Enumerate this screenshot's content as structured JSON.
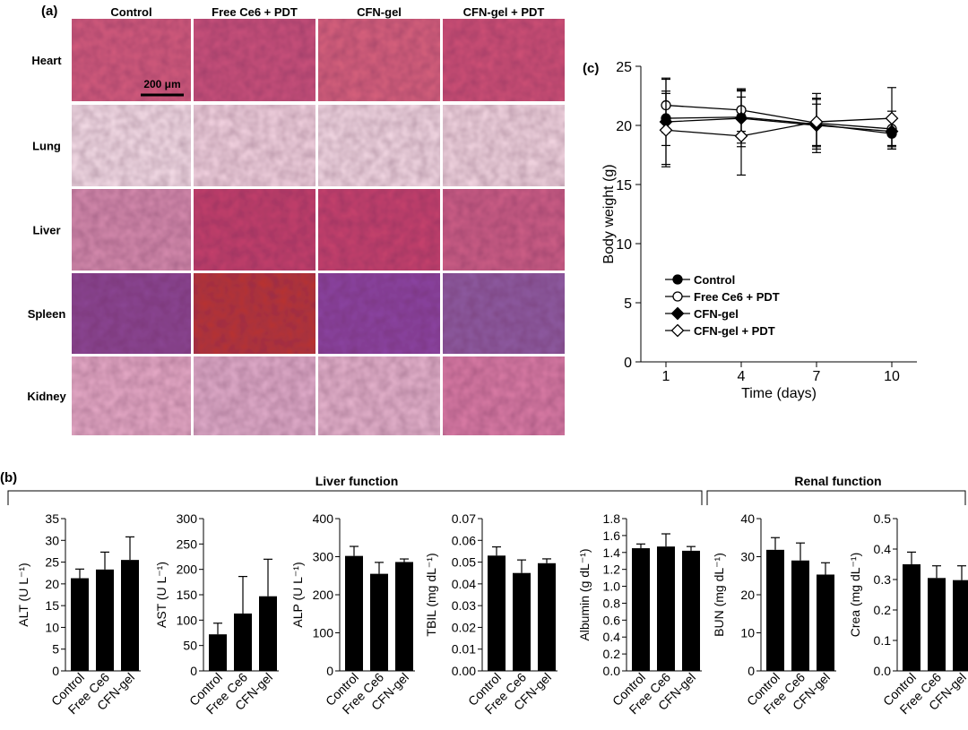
{
  "panel_labels": {
    "a": "(a)",
    "b": "(b)",
    "c": "(c)"
  },
  "histology": {
    "columns": [
      "Control",
      "Free Ce6 + PDT",
      "CFN-gel",
      "CFN-gel + PDT"
    ],
    "rows": [
      "Heart",
      "Lung",
      "Liver",
      "Spleen",
      "Kidney"
    ],
    "scale_bar": "200 μm",
    "tissue_colors": {
      "Heart": [
        "#d25a7c",
        "#c8507a",
        "#d6607c",
        "#cd4f75"
      ],
      "Lung": [
        "#f3dbe6",
        "#f0d0de",
        "#f1d6e2",
        "#f0d3df"
      ],
      "Liver": [
        "#d389ac",
        "#c23f6a",
        "#c5416c",
        "#cb5d85"
      ],
      "Spleen": [
        "#8a4592",
        "#b8332f",
        "#8a43a0",
        "#8d5aa0"
      ],
      "Kidney": [
        "#e4a8c5",
        "#deaac8",
        "#e3b1cb",
        "#d87aa4"
      ]
    }
  },
  "groups": {
    "liver_function": "Liver function",
    "renal_function": "Renal function"
  },
  "chart_data": [
    {
      "panel": "c",
      "type": "line",
      "xlabel": "Time (days)",
      "ylabel": "Body weight (g)",
      "x": [
        1,
        4,
        7,
        10
      ],
      "xticks": [
        "1",
        "4",
        "7",
        "10"
      ],
      "ylim": [
        0,
        25
      ],
      "yticks": [
        "0",
        "5",
        "10",
        "15",
        "20",
        "25"
      ],
      "legend_position": "bottom-left",
      "series": [
        {
          "name": "Control",
          "marker": "filled-circle",
          "values": [
            20.6,
            20.7,
            20.1,
            19.3
          ],
          "errors": [
            2.3,
            2.2,
            2.1,
            1.3
          ]
        },
        {
          "name": "Free Ce6 + PDT",
          "marker": "open-circle",
          "values": [
            21.7,
            21.3,
            20.2,
            19.7
          ],
          "errors": [
            2.3,
            1.8,
            2.5,
            1.5
          ]
        },
        {
          "name": "CFN-gel",
          "marker": "filled-diamond",
          "values": [
            20.3,
            20.6,
            20.0,
            19.5
          ],
          "errors": [
            3.6,
            2.4,
            1.8,
            1.2
          ]
        },
        {
          "name": "CFN-gel + PDT",
          "marker": "open-diamond",
          "values": [
            19.6,
            19.1,
            20.3,
            20.6
          ],
          "errors": [
            3.1,
            3.3,
            2.0,
            2.6
          ]
        }
      ]
    },
    {
      "panel": "b",
      "type": "bar",
      "ylabel": "ALT (U L⁻¹)",
      "categories": [
        "Control",
        "Free Ce6",
        "CFN-gel"
      ],
      "values": [
        21.3,
        23.3,
        25.5
      ],
      "errors": [
        2.1,
        4.0,
        5.3
      ],
      "ylim": [
        0,
        35
      ],
      "yticks": [
        "0",
        "5",
        "10",
        "15",
        "20",
        "25",
        "30",
        "35"
      ]
    },
    {
      "panel": "b",
      "type": "bar",
      "ylabel": "AST (U L⁻¹)",
      "categories": [
        "Control",
        "Free Ce6",
        "CFN-gel"
      ],
      "values": [
        72,
        113,
        147
      ],
      "errors": [
        22,
        73,
        73
      ],
      "ylim": [
        0,
        300
      ],
      "yticks": [
        "0",
        "50",
        "100",
        "150",
        "200",
        "250",
        "300"
      ]
    },
    {
      "panel": "b",
      "type": "bar",
      "ylabel": "ALP (U L⁻¹)",
      "categories": [
        "Control",
        "Free Ce6",
        "CFN-gel"
      ],
      "values": [
        302,
        255,
        286
      ],
      "errors": [
        25,
        30,
        8
      ],
      "ylim": [
        0,
        400
      ],
      "yticks": [
        "0",
        "100",
        "200",
        "300",
        "400"
      ]
    },
    {
      "panel": "b",
      "type": "bar",
      "ylabel": "TBIL (mg dL⁻¹)",
      "categories": [
        "Control",
        "Free Ce6",
        "CFN-gel"
      ],
      "values": [
        0.053,
        0.045,
        0.0495
      ],
      "errors": [
        0.004,
        0.006,
        0.002
      ],
      "ylim": [
        0,
        0.07
      ],
      "yticks": [
        "0.00",
        "0.01",
        "0.02",
        "0.03",
        "0.04",
        "0.05",
        "0.06",
        "0.07"
      ]
    },
    {
      "panel": "b",
      "type": "bar",
      "ylabel": "Albumin (g dL⁻¹)",
      "categories": [
        "Control",
        "Free Ce6",
        "CFN-gel"
      ],
      "values": [
        1.45,
        1.47,
        1.42
      ],
      "errors": [
        0.05,
        0.15,
        0.05
      ],
      "ylim": [
        0,
        1.8
      ],
      "yticks": [
        "0.0",
        "0.2",
        "0.4",
        "0.6",
        "0.8",
        "1.0",
        "1.2",
        "1.4",
        "1.6",
        "1.8"
      ]
    },
    {
      "panel": "b",
      "type": "bar",
      "ylabel": "BUN (mg dL⁻¹)",
      "categories": [
        "Control",
        "Free Ce6",
        "CFN-gel"
      ],
      "values": [
        31.8,
        29.0,
        25.3
      ],
      "errors": [
        3.2,
        4.6,
        3.1
      ],
      "ylim": [
        0,
        40
      ],
      "yticks": [
        "0",
        "10",
        "20",
        "30",
        "40"
      ]
    },
    {
      "panel": "b",
      "type": "bar",
      "ylabel": "Crea (mg dL⁻¹)",
      "categories": [
        "Control",
        "Free Ce6",
        "CFN-gel"
      ],
      "values": [
        0.35,
        0.305,
        0.298
      ],
      "errors": [
        0.04,
        0.04,
        0.047
      ],
      "ylim": [
        0,
        0.5
      ],
      "yticks": [
        "0.0",
        "0.1",
        "0.2",
        "0.3",
        "0.4",
        "0.5"
      ]
    }
  ]
}
